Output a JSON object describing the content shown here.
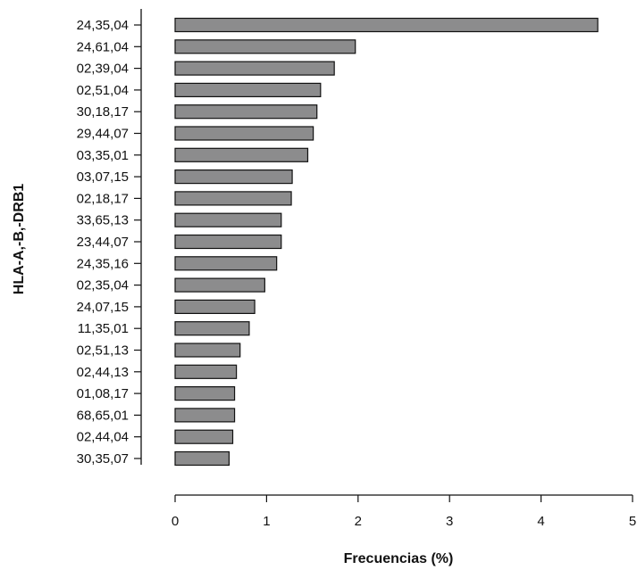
{
  "chart_data": {
    "type": "bar",
    "orientation": "horizontal",
    "title": "",
    "xlabel": "Frecuencias (%)",
    "ylabel": "HLA-A,-B,-DRB1",
    "xlim": [
      0,
      5
    ],
    "xticks": [
      "0",
      "1",
      "2",
      "3",
      "4",
      "5"
    ],
    "grid": false,
    "bar_color": "#8c8c8d",
    "categories": [
      "24,35,04",
      "24,61,04",
      "02,39,04",
      "02,51,04",
      "30,18,17",
      "29,44,07",
      "03,35,01",
      "03,07,15",
      "02,18,17",
      "33,65,13",
      "23,44,07",
      "24,35,16",
      "02,35,04",
      "24,07,15",
      "11,35,01",
      "02,51,13",
      "02,44,13",
      "01,08,17",
      "68,65,01",
      "02,44,04",
      "30,35,07"
    ],
    "values": [
      4.62,
      1.97,
      1.74,
      1.59,
      1.55,
      1.51,
      1.45,
      1.28,
      1.27,
      1.16,
      1.16,
      1.11,
      0.98,
      0.87,
      0.81,
      0.71,
      0.67,
      0.65,
      0.65,
      0.63,
      0.59
    ]
  }
}
